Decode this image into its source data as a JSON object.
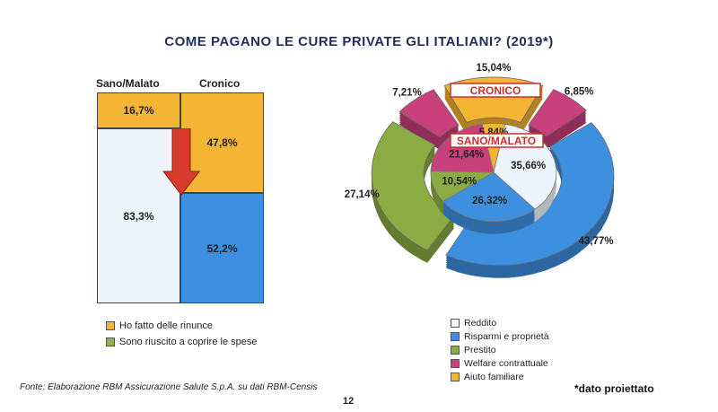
{
  "title": "COME PAGANO LE CURE PRIVATE GLI ITALIANI? (2019*)",
  "colors": {
    "rinunce": "#f5b534",
    "coprire": "#8fb04a",
    "reddito": "#eef4fb",
    "risparmi": "#3d8fdf",
    "prestito": "#8aac42",
    "welfare": "#c8407c",
    "aiuto": "#f5b534",
    "accent_red": "#d83b2c"
  },
  "chart_data": [
    {
      "type": "bar",
      "subtype": "mosaic-100pct",
      "categories": [
        "Sano/Malato",
        "Cronico"
      ],
      "series": [
        {
          "name": "Ho fatto delle rinunce",
          "values": [
            16.7,
            47.8
          ],
          "labels": [
            "16,7%",
            "47,8%"
          ]
        },
        {
          "name": "Sono riuscito a coprire le spese",
          "values": [
            83.3,
            52.2
          ],
          "labels": [
            "83,3%",
            "52,2%"
          ]
        }
      ],
      "legend_position": "bottom"
    },
    {
      "type": "pie",
      "subtype": "double-ring",
      "rings": [
        {
          "name": "CRONICO",
          "slices": [
            {
              "label": "Aiuto familiare",
              "value": 15.04,
              "text": "15,04%"
            },
            {
              "label": "Welfare contrattuale",
              "value": 6.85,
              "text": "6,85%"
            },
            {
              "label": "Risparmi e proprietà",
              "value": 43.77,
              "text": "43,77%"
            },
            {
              "label": "Prestito",
              "value": 27.14,
              "text": "27,14%"
            },
            {
              "label": "Welfare contrattuale",
              "value": 7.21,
              "text": "7,21%"
            }
          ]
        },
        {
          "name": "SANO/MALATO",
          "slices": [
            {
              "label": "Aiuto familiare",
              "value": 5.84,
              "text": "5,84%"
            },
            {
              "label": "Reddito",
              "value": 35.66,
              "text": "35,66%"
            },
            {
              "label": "Risparmi e proprietà",
              "value": 26.32,
              "text": "26,32%"
            },
            {
              "label": "Prestito",
              "value": 10.54,
              "text": "10,54%"
            },
            {
              "label": "Welfare contrattuale",
              "value": 21.64,
              "text": "21,64%"
            }
          ]
        }
      ],
      "legend": [
        "Reddito",
        "Risparmi e proprietà",
        "Prestito",
        "Welfare contrattuale",
        "Aiuto familiare"
      ],
      "legend_position": "bottom"
    }
  ],
  "mosaic": {
    "col1": "Sano/Malato",
    "col2": "Cronico",
    "c1_top": "16,7%",
    "c1_bottom": "83,3%",
    "c2_top": "47,8%",
    "c2_bottom": "52,2%"
  },
  "legend_left": {
    "item1": "Ho fatto delle rinunce",
    "item2": "Sono riuscito a coprire le spese"
  },
  "legend_right": {
    "item1": "Reddito",
    "item2": "Risparmi e proprietà",
    "item3": "Prestito",
    "item4": "Welfare contrattuale",
    "item5": "Aiuto familiare"
  },
  "ring_labels": {
    "outer": "CRONICO",
    "inner": "SANO/MALATO"
  },
  "footer": {
    "source": "Fonte: Elaborazione RBM Assicurazione Salute S.p.A. su dati RBM-Censis",
    "page": "12",
    "note": "*dato proiettato"
  }
}
